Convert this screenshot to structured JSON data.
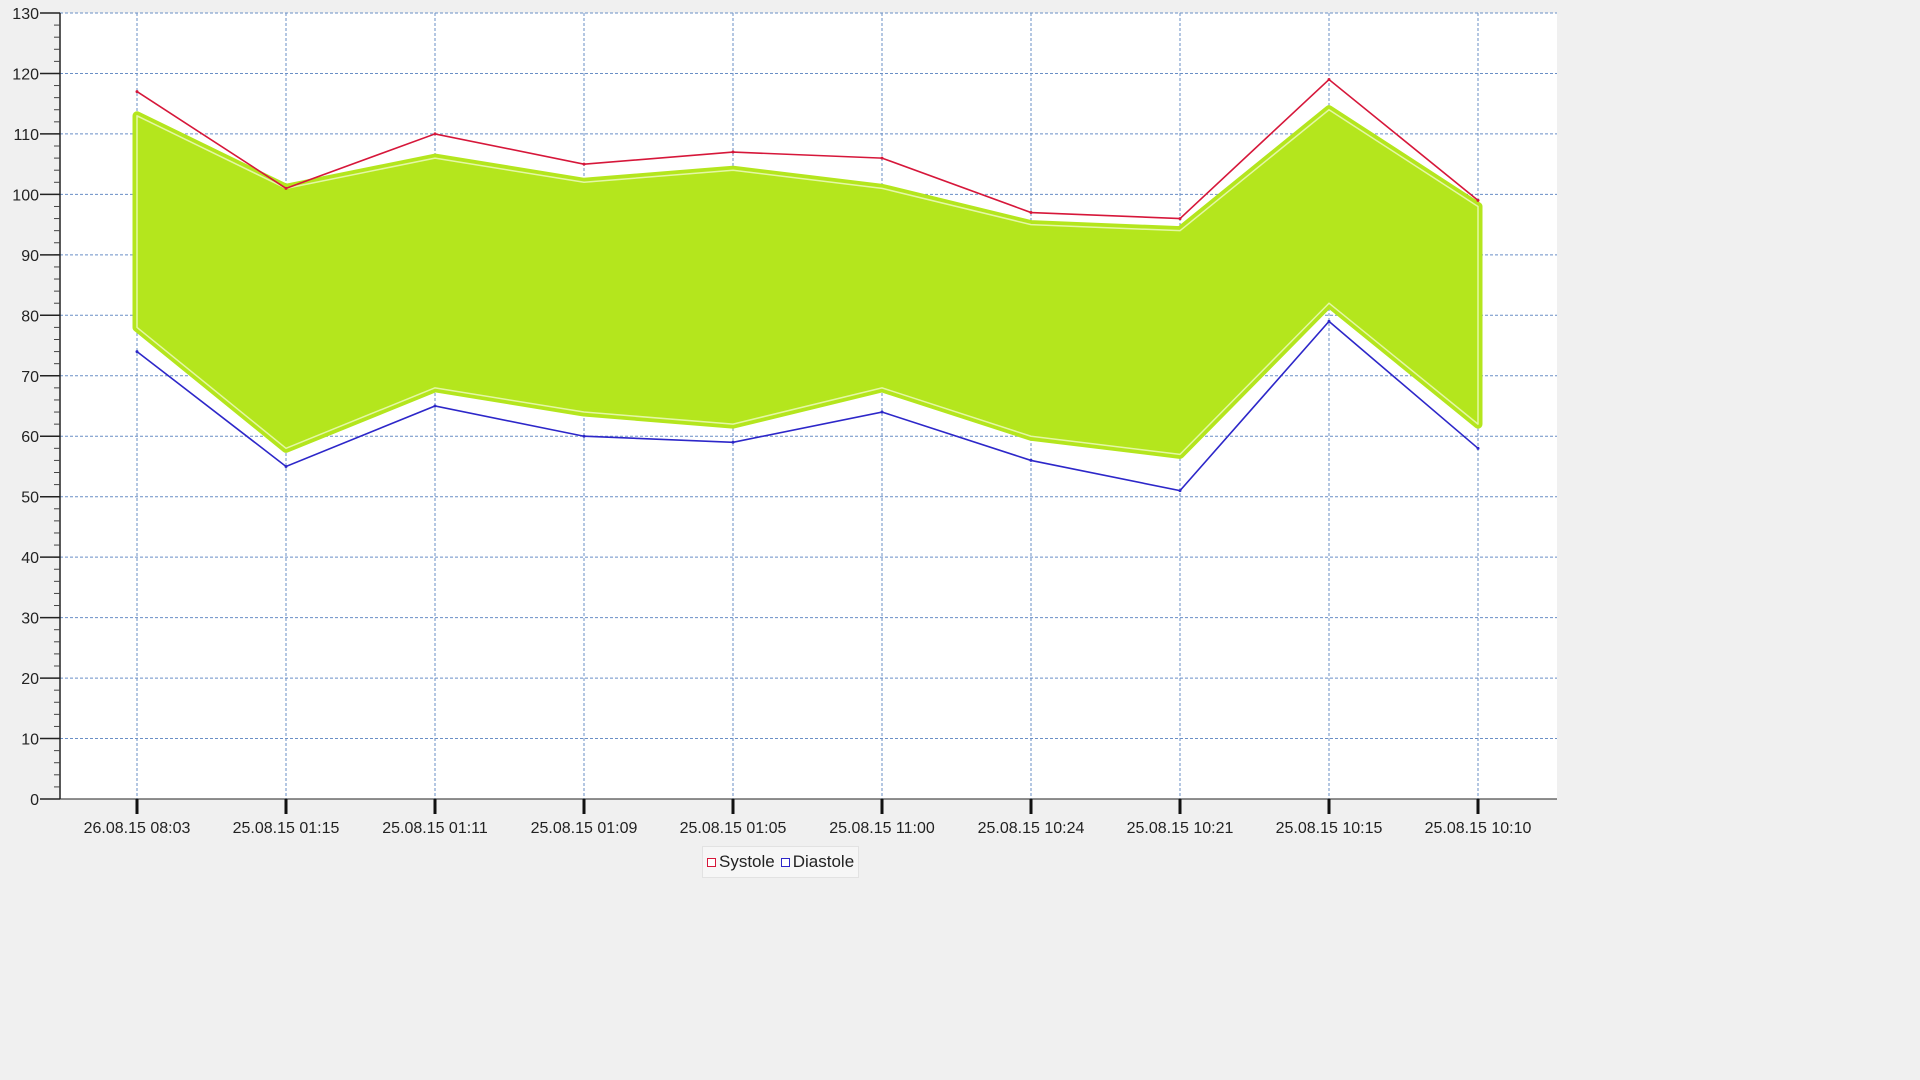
{
  "chart_data": {
    "type": "line",
    "title": "",
    "xlabel": "",
    "ylabel": "",
    "categories": [
      "26.08.15 08:03",
      "25.08.15 01:15",
      "25.08.15 01:11",
      "25.08.15 01:09",
      "25.08.15 01:05",
      "25.08.15 11:00",
      "25.08.15 10:24",
      "25.08.15 10:21",
      "25.08.15 10:15",
      "25.08.15 10:10"
    ],
    "series": [
      {
        "name": "Systole",
        "color": "#d6173a",
        "values": [
          117,
          101,
          110,
          105,
          107,
          106,
          97,
          96,
          119,
          99
        ]
      },
      {
        "name": "Diastole",
        "color": "#2d27c9",
        "values": [
          74,
          55,
          65,
          60,
          59,
          64,
          56,
          51,
          79,
          58
        ]
      }
    ],
    "ylim": [
      0,
      130
    ],
    "y_ticks": [
      0,
      10,
      20,
      30,
      40,
      50,
      60,
      70,
      80,
      90,
      100,
      110,
      120,
      130
    ],
    "grid": true,
    "grid_color": "#6a8fc6",
    "legend_position": "bottom-center",
    "highlight": {
      "color": "#b4e61d",
      "description_hidden": true,
      "upper": [
        113,
        101,
        106,
        102,
        104,
        101,
        95,
        94,
        114,
        98
      ],
      "lower": [
        78,
        58,
        68,
        64,
        62,
        68,
        60,
        57,
        82,
        62
      ]
    }
  }
}
